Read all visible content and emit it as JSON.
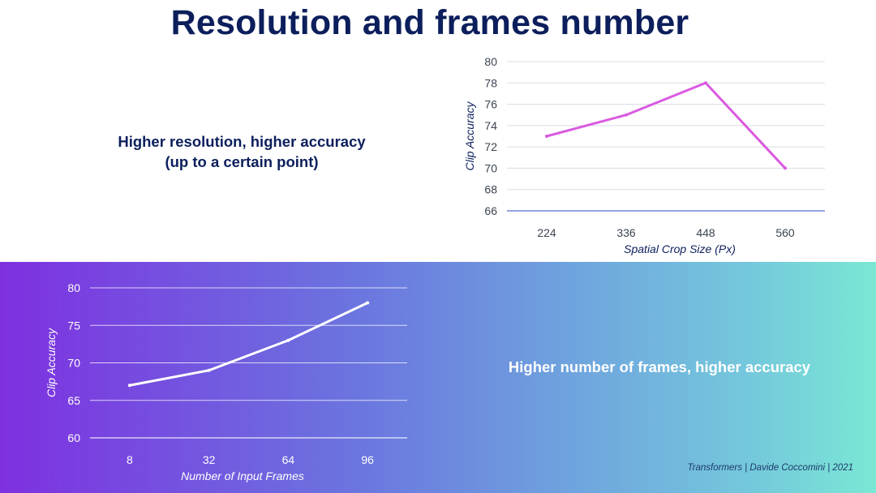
{
  "slide": {
    "title": "Resolution and frames number",
    "top_caption_line1": "Higher resolution, higher accuracy",
    "top_caption_line2": "(up to a certain point)",
    "bottom_caption": "Higher number of frames, higher accuracy",
    "footer": "Transformers | Davide Coccomini | 2021"
  },
  "colors": {
    "title": "#0c1f5c",
    "resolution_line": "#d95be0",
    "frames_line": "#ffffff",
    "band_start": "#7e30e0",
    "band_end": "#7ae8d5"
  },
  "chart_data": [
    {
      "id": "resolution",
      "type": "line",
      "title": "",
      "categories": [
        "224",
        "336",
        "448",
        "560"
      ],
      "series": [
        {
          "name": "Clip Accuracy",
          "values": [
            73,
            75,
            78,
            70
          ]
        }
      ],
      "xlabel": "Spatial Crop Size (Px)",
      "ylabel": "Clip Accuracy",
      "ylim": [
        66,
        80
      ],
      "yticks": [
        66,
        68,
        70,
        72,
        74,
        76,
        78,
        80
      ],
      "grid": true
    },
    {
      "id": "frames",
      "type": "line",
      "title": "",
      "categories": [
        "8",
        "32",
        "64",
        "96"
      ],
      "series": [
        {
          "name": "Clip Accuracy",
          "values": [
            67,
            69,
            73,
            78
          ]
        }
      ],
      "xlabel": "Number of Input Frames",
      "ylabel": "Clip Accuracy",
      "ylim": [
        60,
        80
      ],
      "yticks": [
        60,
        65,
        70,
        75,
        80
      ],
      "grid": true
    }
  ]
}
